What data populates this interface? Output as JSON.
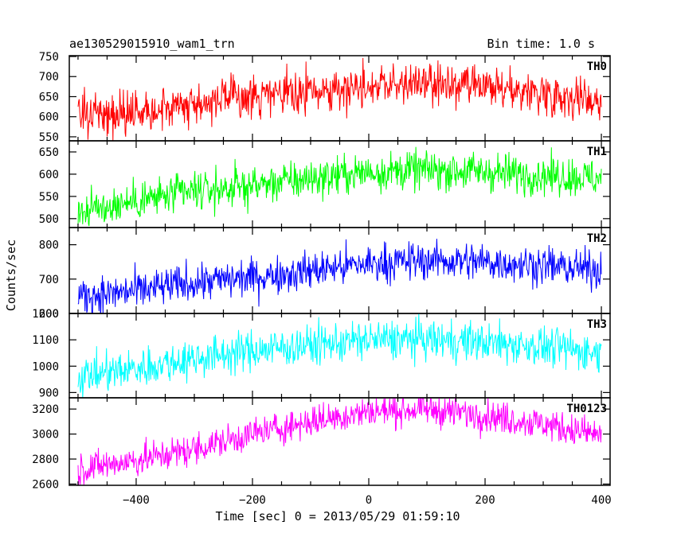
{
  "header": {
    "left_title": "ae130529015910_wam1_trn",
    "right_title": "Bin time: 1.0 s"
  },
  "chart_data": {
    "type": "line",
    "xlabel": "Time [sec] 0 = 2013/05/29 01:59:10",
    "ylabel": "Counts/sec",
    "xlim": [
      -515,
      415
    ],
    "x_ticks": [
      -400,
      -200,
      0,
      200,
      400
    ],
    "x_tick_labels": [
      "−400",
      "−200",
      "0",
      "200",
      "400"
    ],
    "x": {
      "start": -500,
      "end": 400,
      "step": 1
    },
    "panels": [
      {
        "name": "TH0",
        "color": "#ff0000",
        "ylim": [
          540,
          752
        ],
        "y_ticks": [
          550,
          600,
          650,
          700,
          750
        ],
        "trend": [
          [
            -500,
            600
          ],
          [
            -400,
            615
          ],
          [
            -300,
            635
          ],
          [
            -200,
            650
          ],
          [
            -100,
            660
          ],
          [
            0,
            680
          ],
          [
            100,
            680
          ],
          [
            200,
            670
          ],
          [
            300,
            660
          ],
          [
            400,
            640
          ]
        ],
        "noise": 26
      },
      {
        "name": "TH1",
        "color": "#00ff00",
        "ylim": [
          480,
          675
        ],
        "y_ticks": [
          500,
          550,
          600,
          650
        ],
        "trend": [
          [
            -500,
            515
          ],
          [
            -400,
            540
          ],
          [
            -300,
            560
          ],
          [
            -200,
            575
          ],
          [
            -100,
            590
          ],
          [
            0,
            605
          ],
          [
            100,
            610
          ],
          [
            200,
            605
          ],
          [
            300,
            598
          ],
          [
            400,
            590
          ]
        ],
        "noise": 22
      },
      {
        "name": "TH2",
        "color": "#0000ff",
        "ylim": [
          600,
          850
        ],
        "y_ticks": [
          600,
          700,
          800
        ],
        "trend": [
          [
            -500,
            650
          ],
          [
            -400,
            665
          ],
          [
            -300,
            690
          ],
          [
            -200,
            705
          ],
          [
            -100,
            725
          ],
          [
            0,
            745
          ],
          [
            100,
            755
          ],
          [
            200,
            750
          ],
          [
            300,
            740
          ],
          [
            400,
            725
          ]
        ],
        "noise": 28
      },
      {
        "name": "TH3",
        "color": "#00ffff",
        "ylim": [
          880,
          1200
        ],
        "y_ticks": [
          900,
          1000,
          1100,
          1200
        ],
        "trend": [
          [
            -500,
            960
          ],
          [
            -400,
            990
          ],
          [
            -300,
            1030
          ],
          [
            -200,
            1060
          ],
          [
            -100,
            1080
          ],
          [
            0,
            1100
          ],
          [
            100,
            1100
          ],
          [
            200,
            1090
          ],
          [
            300,
            1075
          ],
          [
            400,
            1050
          ]
        ],
        "noise": 38
      },
      {
        "name": "TH0123",
        "color": "#ff00ff",
        "ylim": [
          2590,
          3290
        ],
        "y_ticks": [
          2600,
          2800,
          3000,
          3200
        ],
        "trend": [
          [
            -500,
            2720
          ],
          [
            -400,
            2790
          ],
          [
            -300,
            2880
          ],
          [
            -200,
            3000
          ],
          [
            -100,
            3100
          ],
          [
            0,
            3180
          ],
          [
            100,
            3200
          ],
          [
            200,
            3150
          ],
          [
            300,
            3080
          ],
          [
            400,
            2990
          ]
        ],
        "noise": 65
      }
    ]
  }
}
